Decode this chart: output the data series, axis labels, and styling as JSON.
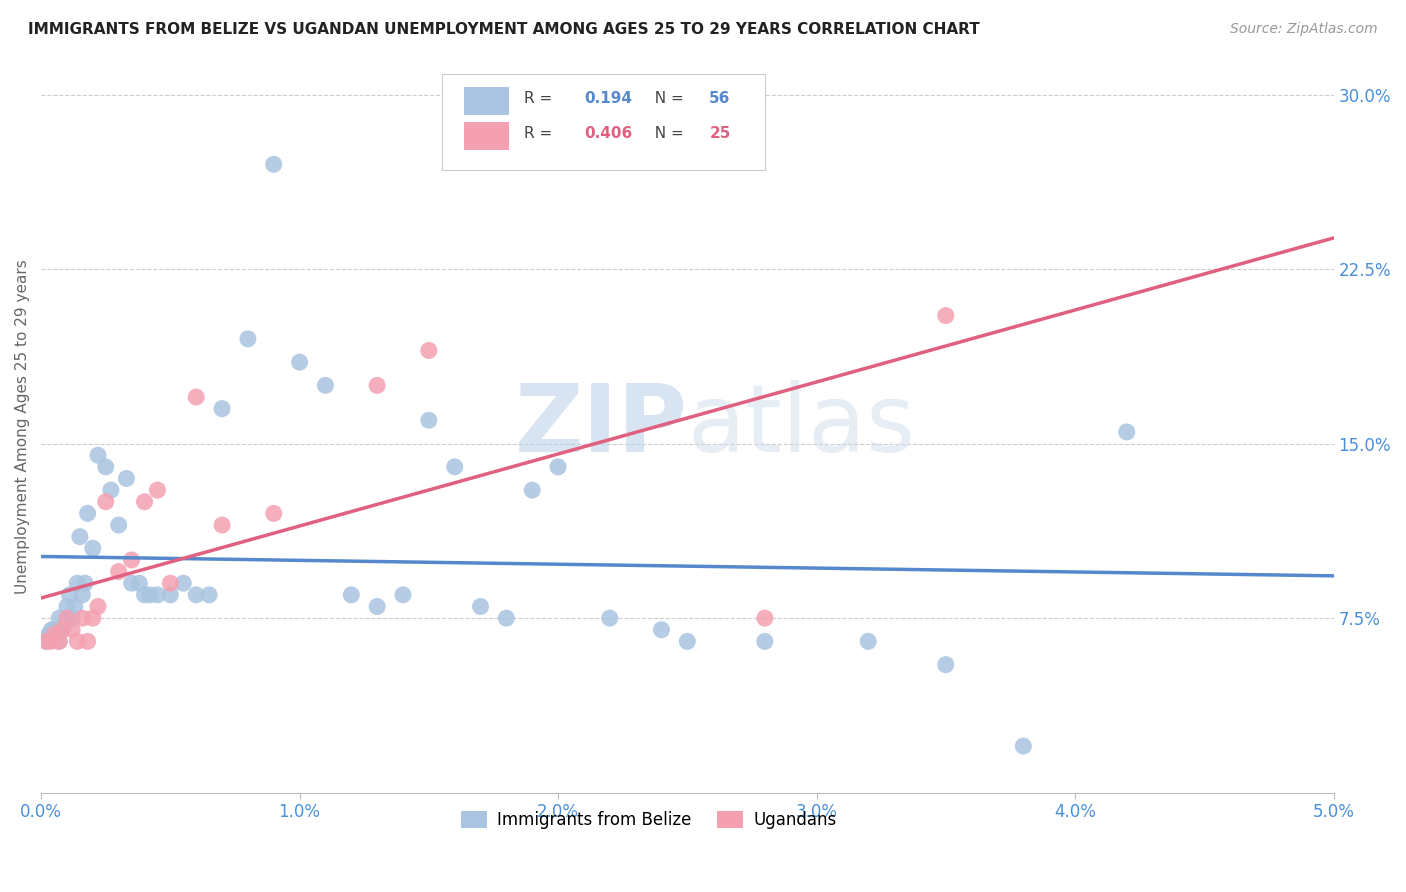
{
  "title": "IMMIGRANTS FROM BELIZE VS UGANDAN UNEMPLOYMENT AMONG AGES 25 TO 29 YEARS CORRELATION CHART",
  "source": "Source: ZipAtlas.com",
  "ylabel": "Unemployment Among Ages 25 to 29 years",
  "xlim": [
    0.0,
    0.05
  ],
  "ylim": [
    0.0,
    0.315
  ],
  "xticks": [
    0.0,
    0.01,
    0.02,
    0.03,
    0.04,
    0.05
  ],
  "xticklabels": [
    "0.0%",
    "1.0%",
    "2.0%",
    "3.0%",
    "4.0%",
    "5.0%"
  ],
  "yticks_right": [
    0.075,
    0.15,
    0.225,
    0.3
  ],
  "yticklabels_right": [
    "7.5%",
    "15.0%",
    "22.5%",
    "30.0%"
  ],
  "blue_color": "#a8c4e0",
  "pink_color": "#f4a0b0",
  "blue_line_color": "#5588cc",
  "pink_line_color": "#e06080",
  "r_blue": "0.194",
  "n_blue": "56",
  "r_pink": "0.406",
  "n_pink": "25",
  "belize_x": [
    0.0002,
    0.0003,
    0.0004,
    0.0005,
    0.0006,
    0.0007,
    0.0007,
    0.0008,
    0.0009,
    0.001,
    0.001,
    0.0011,
    0.0012,
    0.0013,
    0.0014,
    0.0015,
    0.0016,
    0.0017,
    0.0018,
    0.002,
    0.0022,
    0.0025,
    0.0027,
    0.003,
    0.0033,
    0.0035,
    0.0038,
    0.004,
    0.0042,
    0.0045,
    0.005,
    0.0055,
    0.006,
    0.0065,
    0.007,
    0.008,
    0.009,
    0.01,
    0.011,
    0.012,
    0.013,
    0.014,
    0.015,
    0.016,
    0.017,
    0.018,
    0.019,
    0.02,
    0.022,
    0.024,
    0.025,
    0.028,
    0.032,
    0.035,
    0.038,
    0.042
  ],
  "belize_y": [
    0.065,
    0.068,
    0.07,
    0.07,
    0.068,
    0.065,
    0.075,
    0.07,
    0.072,
    0.075,
    0.08,
    0.085,
    0.075,
    0.08,
    0.09,
    0.11,
    0.085,
    0.09,
    0.12,
    0.105,
    0.145,
    0.14,
    0.13,
    0.115,
    0.135,
    0.09,
    0.09,
    0.085,
    0.085,
    0.085,
    0.085,
    0.09,
    0.085,
    0.085,
    0.165,
    0.195,
    0.27,
    0.185,
    0.175,
    0.085,
    0.08,
    0.085,
    0.16,
    0.14,
    0.08,
    0.075,
    0.13,
    0.14,
    0.075,
    0.07,
    0.065,
    0.065,
    0.065,
    0.055,
    0.02,
    0.155
  ],
  "ugandan_x": [
    0.0002,
    0.0004,
    0.0005,
    0.0007,
    0.0008,
    0.001,
    0.0012,
    0.0014,
    0.0016,
    0.0018,
    0.002,
    0.0022,
    0.0025,
    0.003,
    0.0035,
    0.004,
    0.0045,
    0.005,
    0.006,
    0.007,
    0.009,
    0.013,
    0.015,
    0.028,
    0.035
  ],
  "ugandan_y": [
    0.065,
    0.065,
    0.068,
    0.065,
    0.07,
    0.075,
    0.07,
    0.065,
    0.075,
    0.065,
    0.075,
    0.08,
    0.125,
    0.095,
    0.1,
    0.125,
    0.13,
    0.09,
    0.17,
    0.115,
    0.12,
    0.175,
    0.19,
    0.075,
    0.205
  ],
  "watermark_zip": "ZIP",
  "watermark_atlas": "atlas",
  "bg_color": "#ffffff",
  "grid_color": "#cccccc",
  "legend_label_blue": "Immigrants from Belize",
  "legend_label_pink": "Ugandans"
}
